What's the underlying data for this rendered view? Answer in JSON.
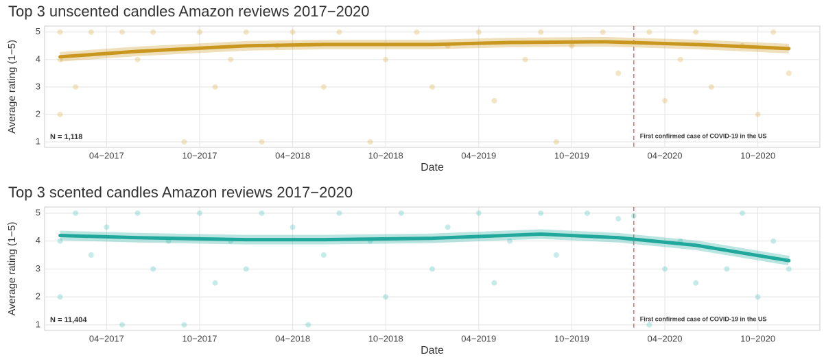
{
  "chart_data": [
    {
      "type": "scatter",
      "title": "Top 3 unscented candles Amazon reviews 2017−2020",
      "xlabel": "Date",
      "ylabel": "Average rating (1−5)",
      "xlim": [
        "2016-12",
        "2021-02"
      ],
      "ylim": [
        0.8,
        5.22
      ],
      "yticks": [
        1,
        2,
        3,
        4,
        5
      ],
      "grid": true,
      "xticks": [
        {
          "value": "2017-04",
          "label": "04−2017"
        },
        {
          "value": "2017-10",
          "label": "10−2017"
        },
        {
          "value": "2018-04",
          "label": "04−2018"
        },
        {
          "value": "2018-10",
          "label": "10−2018"
        },
        {
          "value": "2019-04",
          "label": "04−2019"
        },
        {
          "value": "2019-10",
          "label": "10−2019"
        },
        {
          "value": "2020-04",
          "label": "04−2020"
        },
        {
          "value": "2020-10",
          "label": "10−2020"
        }
      ],
      "series": [
        {
          "kind": "points",
          "color": "#D9AC3C",
          "x": [
            "2017-01",
            "2017-01",
            "2017-01",
            "2017-02",
            "2017-03",
            "2017-05",
            "2017-06",
            "2017-07",
            "2017-09",
            "2017-10",
            "2017-11",
            "2017-12",
            "2018-01",
            "2018-02",
            "2018-03",
            "2018-04",
            "2018-06",
            "2018-07",
            "2018-09",
            "2018-10",
            "2018-12",
            "2019-01",
            "2019-02",
            "2019-04",
            "2019-05",
            "2019-07",
            "2019-08",
            "2019-09",
            "2019-10",
            "2019-12",
            "2020-01",
            "2020-03",
            "2020-04",
            "2020-05",
            "2020-06",
            "2020-07",
            "2020-09",
            "2020-10",
            "2020-11",
            "2020-12"
          ],
          "values": [
            5,
            4,
            2,
            3,
            5,
            5,
            4,
            5,
            1,
            5,
            3,
            4,
            5,
            1,
            4.5,
            5,
            3,
            5,
            1,
            4,
            5,
            3,
            4.5,
            5,
            2.5,
            4,
            5,
            1,
            4.5,
            5,
            3.5,
            5,
            2.5,
            4,
            5,
            3,
            4.5,
            2,
            5,
            3.5
          ]
        },
        {
          "kind": "trend",
          "color": "#C9961E",
          "x": [
            "2017-01",
            "2017-06",
            "2018-01",
            "2018-06",
            "2019-01",
            "2019-06",
            "2019-12",
            "2020-06",
            "2020-12"
          ],
          "values": [
            4.1,
            4.3,
            4.5,
            4.55,
            4.55,
            4.62,
            4.65,
            4.55,
            4.4
          ]
        }
      ],
      "annotations": [
        {
          "text": "N = 1,118"
        },
        {
          "text": "First confirmed case of COVID-19 in the US",
          "x": "2020-02",
          "color": "#E8554E"
        }
      ]
    },
    {
      "type": "scatter",
      "title": "Top 3 scented candles Amazon reviews 2017−2020",
      "xlabel": "Date",
      "ylabel": "Average rating (1−5)",
      "xlim": [
        "2016-12",
        "2021-02"
      ],
      "ylim": [
        0.8,
        5.22
      ],
      "yticks": [
        1,
        2,
        3,
        4,
        5
      ],
      "grid": true,
      "xticks": [
        {
          "value": "2017-04",
          "label": "04−2017"
        },
        {
          "value": "2017-10",
          "label": "10−2017"
        },
        {
          "value": "2018-04",
          "label": "04−2018"
        },
        {
          "value": "2018-10",
          "label": "10−2018"
        },
        {
          "value": "2019-04",
          "label": "04−2019"
        },
        {
          "value": "2019-10",
          "label": "10−2019"
        },
        {
          "value": "2020-04",
          "label": "04−2020"
        },
        {
          "value": "2020-10",
          "label": "10−2020"
        }
      ],
      "series": [
        {
          "kind": "points",
          "color": "#3EC1B5",
          "x": [
            "2017-01",
            "2017-01",
            "2017-02",
            "2017-03",
            "2017-04",
            "2017-05",
            "2017-06",
            "2017-07",
            "2017-08",
            "2017-09",
            "2017-10",
            "2017-11",
            "2017-12",
            "2018-01",
            "2018-02",
            "2018-04",
            "2018-05",
            "2018-06",
            "2018-07",
            "2018-09",
            "2018-10",
            "2018-11",
            "2019-01",
            "2019-02",
            "2019-04",
            "2019-05",
            "2019-06",
            "2019-08",
            "2019-09",
            "2019-11",
            "2020-01",
            "2020-02",
            "2020-03",
            "2020-04",
            "2020-05",
            "2020-06",
            "2020-08",
            "2020-09",
            "2020-10",
            "2020-11",
            "2020-12"
          ],
          "values": [
            4,
            2,
            5,
            3.5,
            4.5,
            1,
            5,
            3,
            4,
            1,
            5,
            2.5,
            4,
            3,
            5,
            4.5,
            1,
            3.5,
            5,
            4,
            2,
            5,
            3,
            4.5,
            5,
            2.5,
            4,
            5,
            3.5,
            5,
            4.8,
            4.9,
            1,
            3,
            4,
            2.5,
            3,
            5,
            2,
            4,
            3
          ]
        },
        {
          "kind": "trend",
          "color": "#1FA89B",
          "x": [
            "2017-01",
            "2017-06",
            "2018-01",
            "2018-06",
            "2019-01",
            "2019-08",
            "2020-01",
            "2020-06",
            "2020-12"
          ],
          "values": [
            4.2,
            4.12,
            4.05,
            4.05,
            4.1,
            4.25,
            4.12,
            3.85,
            3.3
          ]
        }
      ],
      "annotations": [
        {
          "text": "N = 11,404"
        },
        {
          "text": "First confirmed case of COVID-19 in the US",
          "x": "2020-02",
          "color": "#E8554E"
        }
      ]
    }
  ]
}
